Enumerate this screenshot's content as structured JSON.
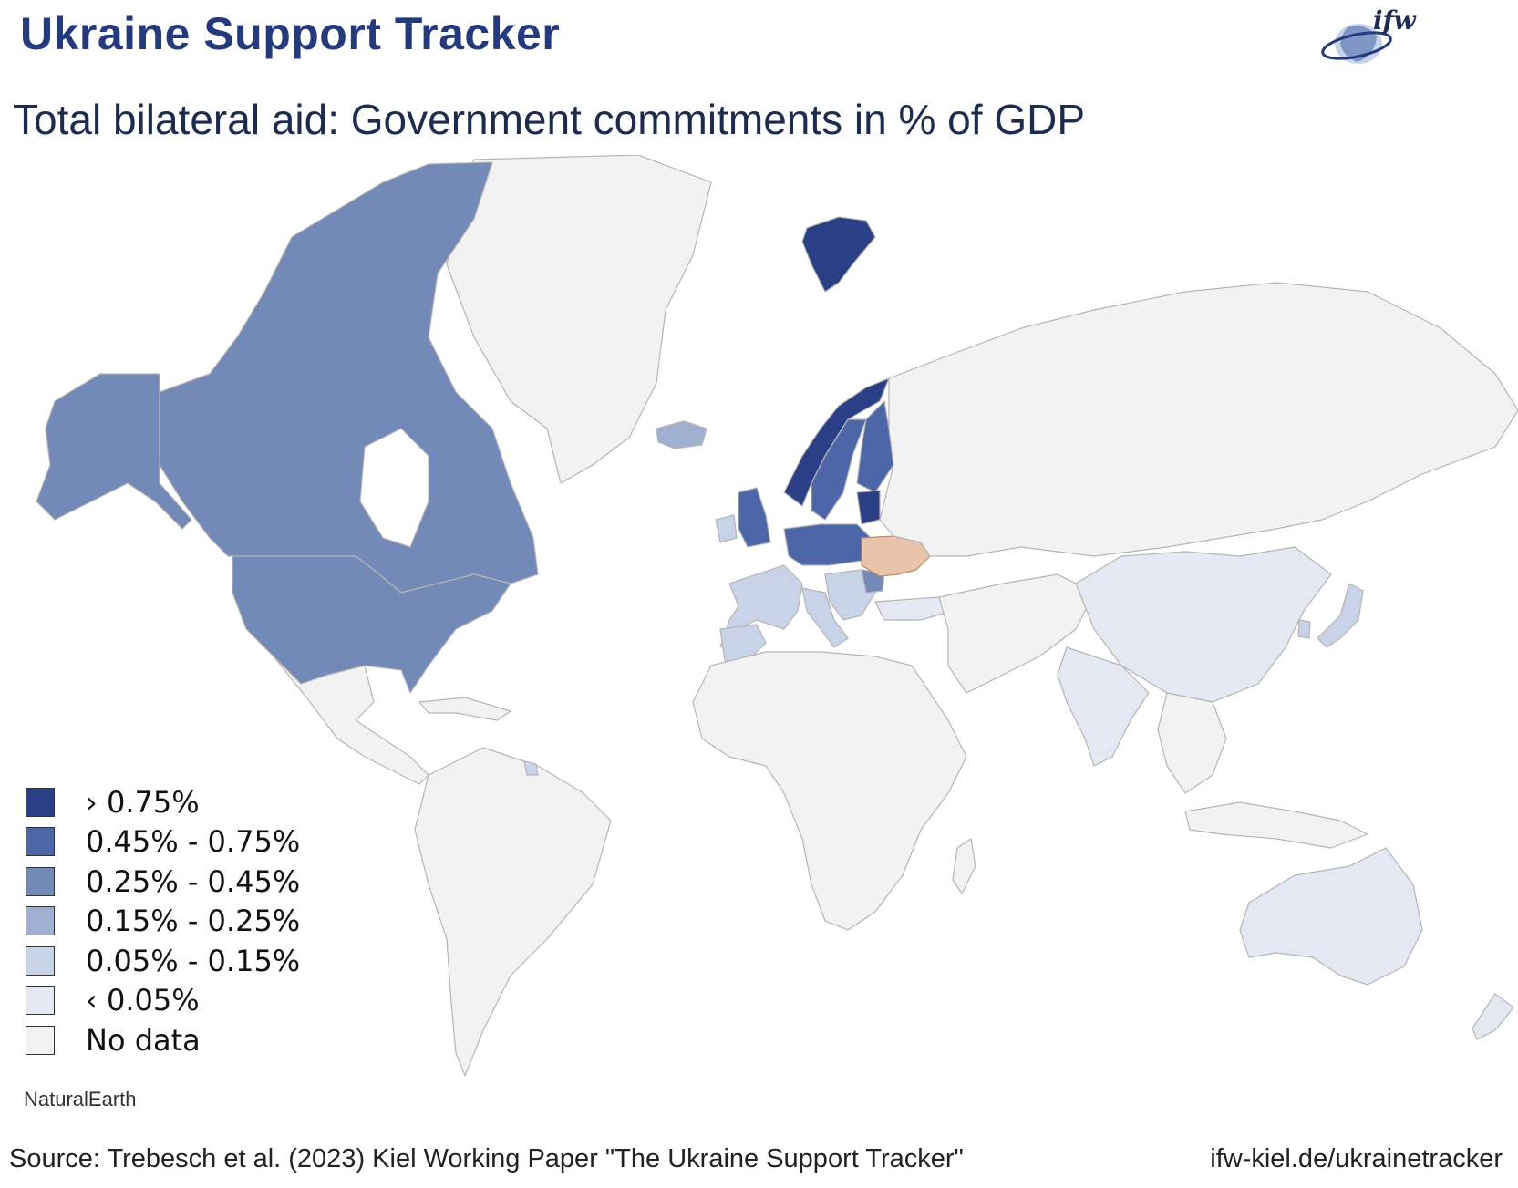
{
  "header": {
    "brand": "Ukraine Support Tracker",
    "subtitle": "Total bilateral aid: Government commitments in % of GDP",
    "logo_text": "ifw"
  },
  "legend": {
    "items": [
      {
        "label": "› 0.75%",
        "color": "#2b3f87"
      },
      {
        "label": "0.45% - 0.75%",
        "color": "#4d66a8"
      },
      {
        "label": "0.25% - 0.45%",
        "color": "#7389b7"
      },
      {
        "label": "0.15% - 0.25%",
        "color": "#9fb0d1"
      },
      {
        "label": "0.05% - 0.15%",
        "color": "#c9d3e8"
      },
      {
        "label": "‹ 0.05%",
        "color": "#e3e8f2"
      },
      {
        "label": "No data",
        "color": "#f2f2f2"
      }
    ]
  },
  "map": {
    "highlight_color": "#e8c4aa",
    "border_color": "#b5b5b5"
  },
  "footer": {
    "attribution": "NaturalEarth",
    "source": "Source: Trebesch et al. (2023) Kiel Working Paper \"The Ukraine Support Tracker\"",
    "url": "ifw-kiel.de/ukrainetracker"
  }
}
